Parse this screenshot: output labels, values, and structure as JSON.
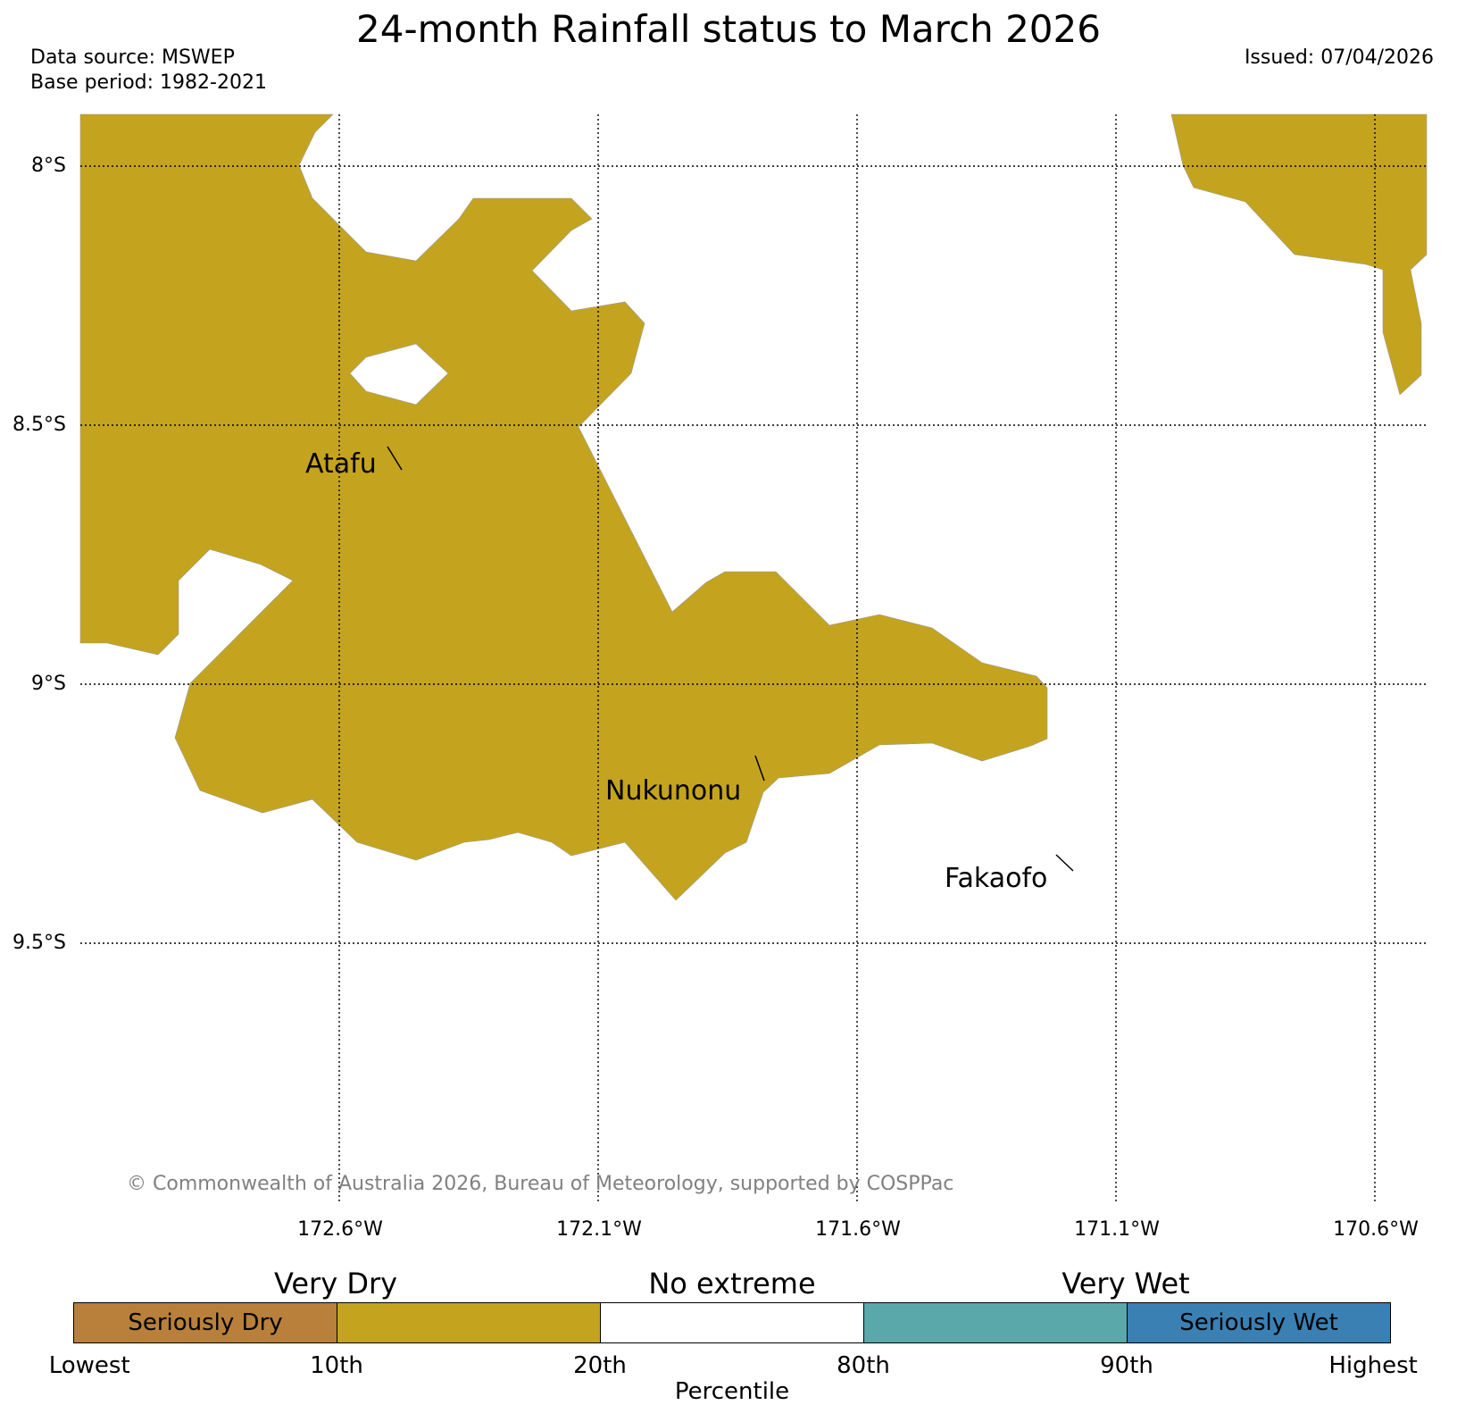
{
  "title": "24-month Rainfall status to March 2026",
  "data_source": "Data source: MSWEP",
  "base_period": "Base period: 1982-2021",
  "issued": "Issued: 07/04/2026",
  "copyright": "© Commonwealth of Australia 2026, Bureau of Meteorology, supported by COSPPac",
  "map": {
    "lat_labels": [
      "8°S",
      "8.5°S",
      "9°S",
      "9.5°S"
    ],
    "lon_labels": [
      "172.6°W",
      "172.1°W",
      "171.6°W",
      "171.1°W",
      "170.6°W"
    ],
    "places": [
      "Atafu",
      "Nukunonu",
      "Fakaofo"
    ],
    "region_category": "Very Dry",
    "region_color": "#C4A41F",
    "background_color": "#FFFFFF",
    "gridlines": "dotted"
  },
  "legend": {
    "group_labels": [
      "Very Dry",
      "No extreme",
      "Very Wet"
    ],
    "segments": [
      {
        "label": "Seriously Dry",
        "color": "#B8803A"
      },
      {
        "label": "",
        "color": "#C4A41F"
      },
      {
        "label": "",
        "color": "#FFFFFF"
      },
      {
        "label": "",
        "color": "#5BA8AA"
      },
      {
        "label": "Seriously Wet",
        "color": "#3A80B3"
      }
    ],
    "ticks": [
      "Lowest",
      "10th",
      "20th",
      "80th",
      "90th",
      "Highest"
    ],
    "axis_title": "Percentile"
  }
}
